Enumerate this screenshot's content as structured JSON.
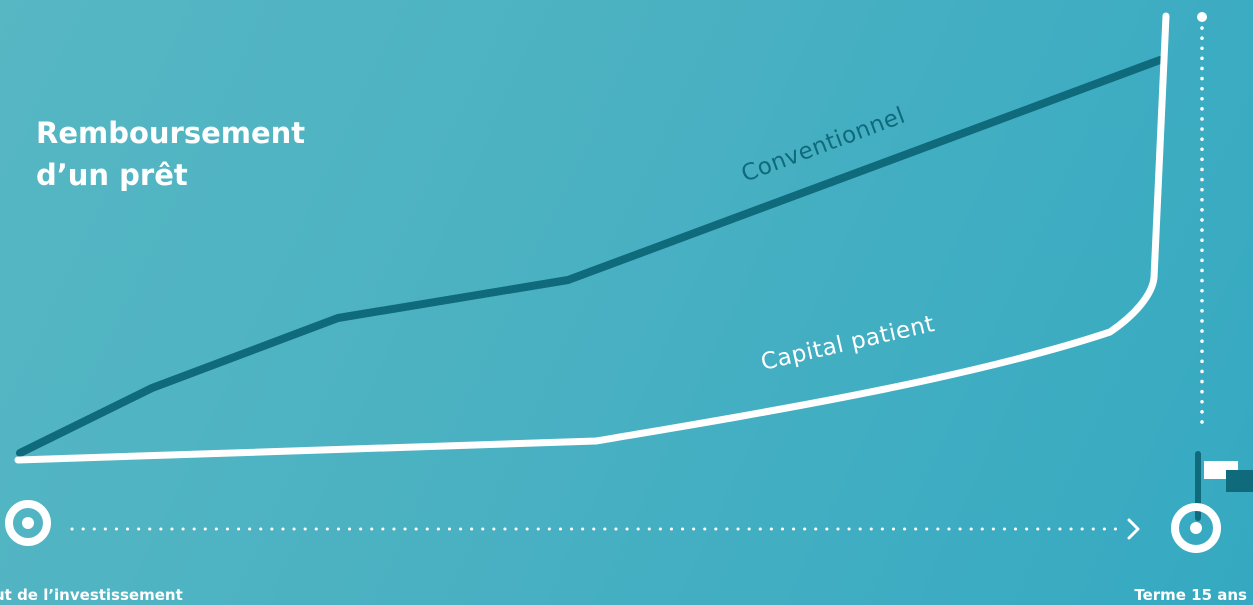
{
  "diagram": {
    "title_line1": "Remboursement",
    "title_line2": "d’un prêt",
    "start_label": "ut de l’investissement",
    "end_label": "Terme 15 ans",
    "series": [
      {
        "name": "Conventionnel",
        "color": "#0f6a7c"
      },
      {
        "name": "Capital patient",
        "color": "#ffffff"
      }
    ]
  },
  "colors": {
    "background_start": "#57b7c3",
    "background_end": "#35a9c1",
    "dark_line": "#0f6a7c",
    "light_line": "#ffffff",
    "text": "#ffffff"
  },
  "icons": {
    "start": "target-ring-icon",
    "end": "target-ring-icon",
    "arrow": "chevron-right-icon",
    "finish": "flag-icon"
  }
}
